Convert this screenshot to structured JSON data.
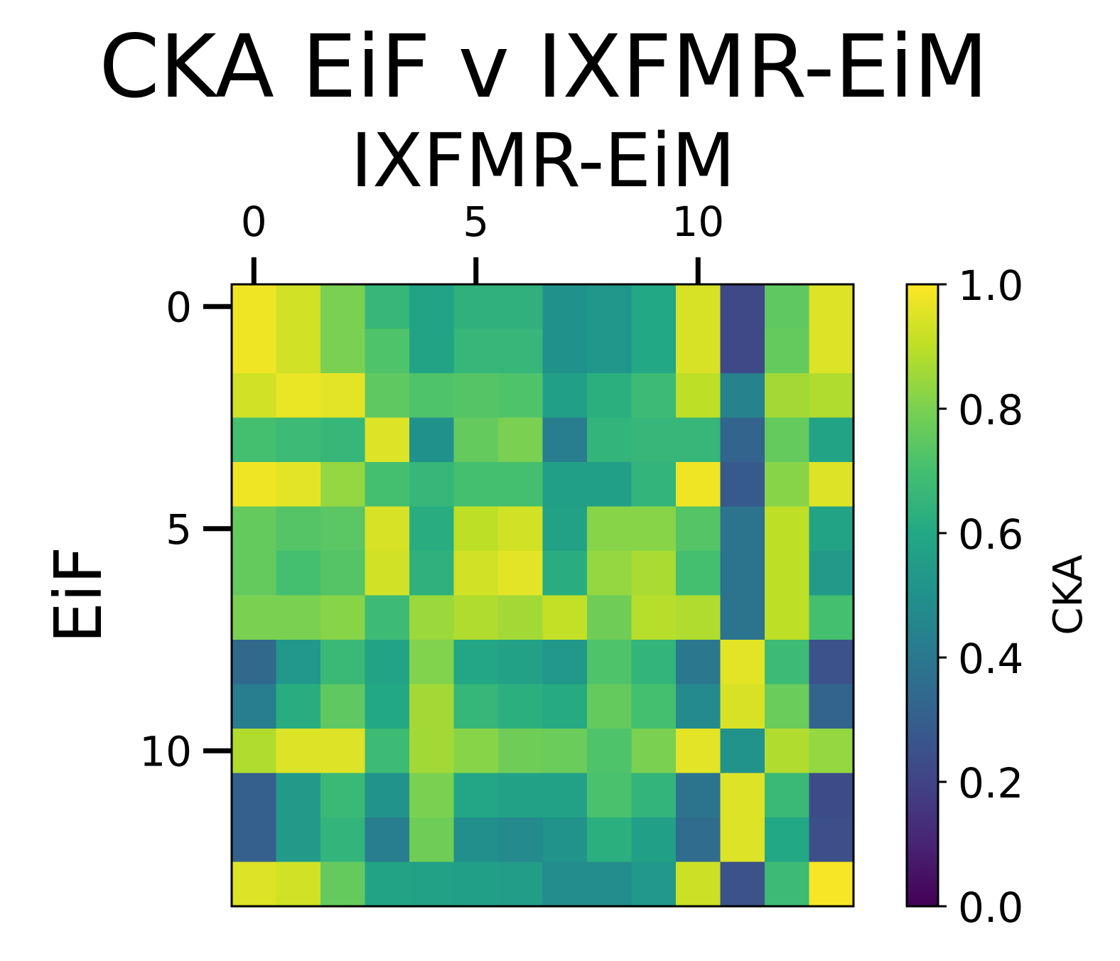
{
  "chart_data": {
    "type": "heatmap",
    "title": "CKA EiF v IXFMR-EiM",
    "xlabel": "IXFMR-EiM",
    "ylabel": "EiF",
    "x_ticks": [
      "0",
      "5",
      "10"
    ],
    "y_ticks": [
      "0",
      "5",
      "10"
    ],
    "colorbar": {
      "label": "CKA",
      "colormap": "viridis",
      "range": [
        0.0,
        1.0
      ],
      "ticks": [
        "0.0",
        "0.2",
        "0.4",
        "0.6",
        "0.8",
        "1.0"
      ]
    },
    "values": [
      [
        0.98,
        0.93,
        0.8,
        0.66,
        0.58,
        0.64,
        0.64,
        0.5,
        0.52,
        0.6,
        0.94,
        0.22,
        0.75,
        0.95
      ],
      [
        0.98,
        0.93,
        0.8,
        0.72,
        0.58,
        0.66,
        0.66,
        0.5,
        0.52,
        0.6,
        0.94,
        0.22,
        0.76,
        0.95
      ],
      [
        0.93,
        0.97,
        0.96,
        0.75,
        0.72,
        0.73,
        0.72,
        0.56,
        0.63,
        0.68,
        0.9,
        0.44,
        0.86,
        0.88
      ],
      [
        0.7,
        0.68,
        0.66,
        0.95,
        0.5,
        0.76,
        0.8,
        0.42,
        0.65,
        0.66,
        0.66,
        0.32,
        0.76,
        0.58
      ],
      [
        0.98,
        0.96,
        0.84,
        0.7,
        0.66,
        0.7,
        0.7,
        0.56,
        0.56,
        0.65,
        0.98,
        0.28,
        0.82,
        0.95
      ],
      [
        0.76,
        0.73,
        0.74,
        0.94,
        0.62,
        0.9,
        0.93,
        0.57,
        0.82,
        0.82,
        0.73,
        0.38,
        0.9,
        0.58
      ],
      [
        0.76,
        0.7,
        0.73,
        0.93,
        0.64,
        0.93,
        0.96,
        0.62,
        0.84,
        0.87,
        0.7,
        0.38,
        0.9,
        0.54
      ],
      [
        0.8,
        0.8,
        0.82,
        0.68,
        0.85,
        0.88,
        0.86,
        0.91,
        0.78,
        0.89,
        0.88,
        0.38,
        0.9,
        0.7
      ],
      [
        0.34,
        0.53,
        0.67,
        0.58,
        0.81,
        0.59,
        0.57,
        0.53,
        0.72,
        0.65,
        0.4,
        0.96,
        0.68,
        0.25
      ],
      [
        0.42,
        0.62,
        0.75,
        0.6,
        0.86,
        0.66,
        0.63,
        0.61,
        0.76,
        0.7,
        0.47,
        0.94,
        0.77,
        0.32
      ],
      [
        0.88,
        0.95,
        0.95,
        0.68,
        0.86,
        0.82,
        0.78,
        0.77,
        0.72,
        0.8,
        0.96,
        0.51,
        0.88,
        0.84
      ],
      [
        0.3,
        0.54,
        0.67,
        0.51,
        0.8,
        0.59,
        0.57,
        0.57,
        0.71,
        0.65,
        0.38,
        0.95,
        0.67,
        0.23
      ],
      [
        0.3,
        0.54,
        0.65,
        0.42,
        0.78,
        0.49,
        0.47,
        0.51,
        0.63,
        0.56,
        0.35,
        0.95,
        0.6,
        0.24
      ],
      [
        0.95,
        0.93,
        0.76,
        0.58,
        0.57,
        0.56,
        0.55,
        0.48,
        0.48,
        0.53,
        0.92,
        0.25,
        0.68,
        0.99
      ]
    ]
  }
}
